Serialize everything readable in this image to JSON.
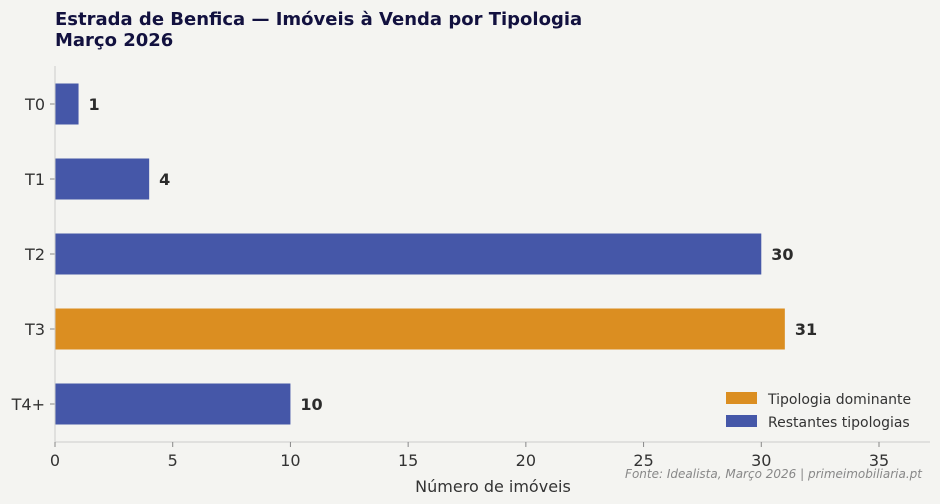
{
  "chart_data": {
    "type": "bar",
    "orientation": "horizontal",
    "title": "Estrada de Benfica — Imóveis à Venda por Tipologia",
    "subtitle": "Março 2026",
    "categories": [
      "T0",
      "T1",
      "T2",
      "T3",
      "T4+"
    ],
    "values": [
      1,
      4,
      30,
      31,
      10
    ],
    "dominant": "T3",
    "xlabel": "Número de imóveis",
    "ylabel": "",
    "xlim": [
      0,
      37.2
    ],
    "xticks": [
      0,
      5,
      10,
      15,
      20,
      25,
      30,
      35
    ],
    "grid": false,
    "legend_position": "bottom-right",
    "legend": [
      {
        "label": "Tipologia dominante",
        "color": "#db8e21"
      },
      {
        "label": "Restantes tipologias",
        "color": "#4557a8"
      }
    ],
    "source": "Fonte: Idealista, Março 2026 | primeimobiliaria.pt"
  }
}
